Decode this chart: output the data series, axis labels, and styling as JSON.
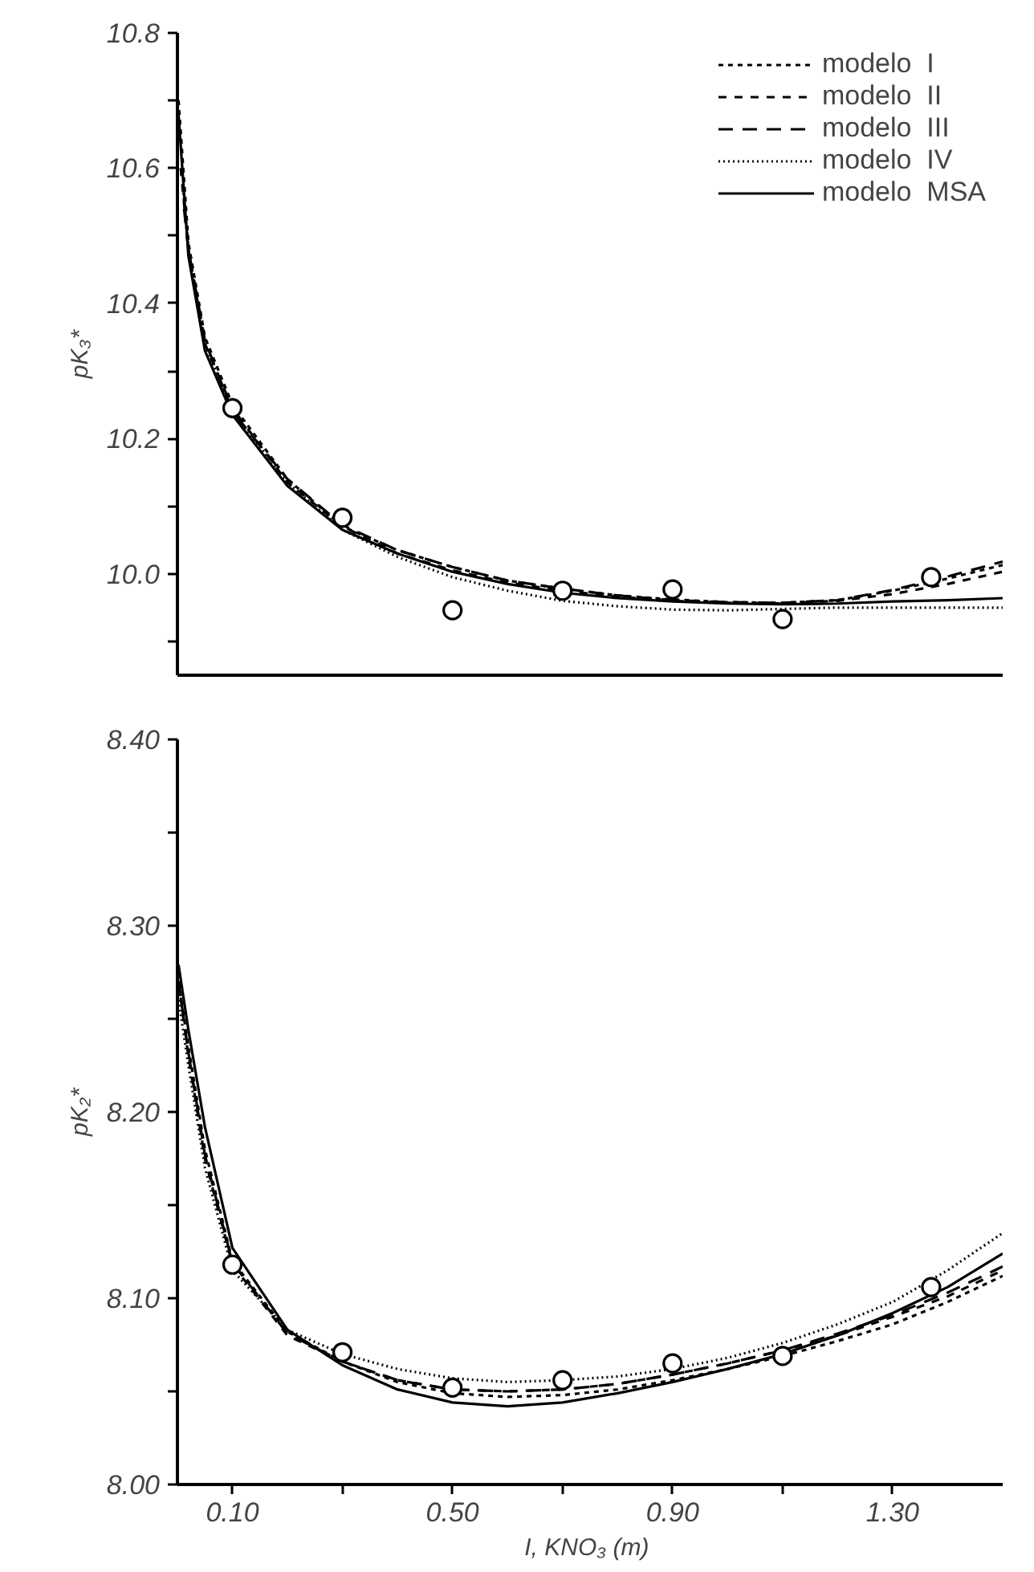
{
  "chart_data": [
    {
      "type": "line",
      "ylabel": "pK₃*",
      "xlim": [
        0,
        1.5
      ],
      "ylim": [
        9.85,
        10.8
      ],
      "yticks": [
        {
          "value": 9.9,
          "label": null
        },
        {
          "value": 10.0,
          "label": "10.0"
        },
        {
          "value": 10.1,
          "label": null
        },
        {
          "value": 10.2,
          "label": "10.2"
        },
        {
          "value": 10.3,
          "label": null
        },
        {
          "value": 10.4,
          "label": "10.4"
        },
        {
          "value": 10.5,
          "label": null
        },
        {
          "value": 10.6,
          "label": "10.6"
        },
        {
          "value": 10.7,
          "label": null
        },
        {
          "value": 10.8,
          "label": "10.8"
        }
      ],
      "tick_labels": "y",
      "grid": false,
      "legend": "top right",
      "x": [
        0.002,
        0.02,
        0.05,
        0.1,
        0.2,
        0.3,
        0.4,
        0.5,
        0.6,
        0.7,
        0.8,
        0.9,
        1.0,
        1.1,
        1.2,
        1.3,
        1.4,
        1.5
      ],
      "series": [
        {
          "name": "modelo  I",
          "color": "#000000",
          "line_style": "dashed",
          "values": [
            10.7,
            10.49,
            10.35,
            10.25,
            10.14,
            10.07,
            10.035,
            10.01,
            9.99,
            9.978,
            9.968,
            9.962,
            9.958,
            9.957,
            9.961,
            9.975,
            9.993,
            10.013
          ]
        },
        {
          "name": "modelo  II",
          "color": "#000000",
          "line_style": "dashed",
          "x": [
            0.006,
            0.02,
            0.05,
            0.1,
            0.2,
            0.3,
            0.4,
            0.5,
            0.6,
            0.7,
            0.8,
            0.9,
            1.0,
            1.1,
            1.2,
            1.3,
            1.4,
            1.5
          ],
          "values": [
            10.6,
            10.48,
            10.34,
            10.245,
            10.135,
            10.07,
            10.03,
            10.005,
            9.987,
            9.975,
            9.966,
            9.96,
            9.957,
            9.956,
            9.96,
            9.97,
            9.985,
            10.003
          ]
        },
        {
          "name": "modelo  III",
          "color": "#000000",
          "line_style": "dashed",
          "x": [
            0.012,
            0.02,
            0.05,
            0.1,
            0.2,
            0.3,
            0.4,
            0.5,
            0.6,
            0.7,
            0.8,
            0.9,
            1.0,
            1.1,
            1.2,
            1.3,
            1.4,
            1.5
          ],
          "values": [
            10.54,
            10.48,
            10.345,
            10.24,
            10.14,
            10.072,
            10.035,
            10.01,
            9.99,
            9.978,
            9.968,
            9.961,
            9.958,
            9.957,
            9.961,
            9.976,
            9.996,
            10.018
          ]
        },
        {
          "name": "modelo  IV",
          "color": "#000000",
          "line_style": "dotted",
          "x": [
            0.01,
            0.02,
            0.05,
            0.1,
            0.2,
            0.3,
            0.4,
            0.5,
            0.6,
            0.7,
            0.8,
            0.9,
            1.0,
            1.1,
            1.2,
            1.3,
            1.4,
            1.5
          ],
          "values": [
            10.57,
            10.48,
            10.34,
            10.24,
            10.135,
            10.065,
            10.025,
            9.995,
            9.975,
            9.96,
            9.952,
            9.947,
            9.946,
            9.948,
            9.95,
            9.95,
            9.95,
            9.95
          ]
        },
        {
          "name": "modelo  MSA",
          "color": "#000000",
          "line_style": "solid",
          "values": [
            10.68,
            10.47,
            10.33,
            10.235,
            10.13,
            10.065,
            10.03,
            10.003,
            9.985,
            9.972,
            9.964,
            9.959,
            9.956,
            9.955,
            9.956,
            9.959,
            9.961,
            9.964
          ]
        },
        {
          "type": "scatter",
          "marker": "circle",
          "color": "#000000",
          "x": [
            0.1,
            0.3,
            0.5,
            0.7,
            0.9,
            1.1,
            1.37
          ],
          "values": [
            10.245,
            10.083,
            9.946,
            9.975,
            9.977,
            9.933,
            9.995
          ]
        }
      ]
    },
    {
      "type": "line",
      "ylabel": "pK₂*",
      "xlabel": "I, KNO₃  (m)",
      "xlim": [
        0,
        1.5
      ],
      "ylim": [
        8.0,
        8.4
      ],
      "xticks": [
        {
          "value": 0.1,
          "label": "0.10"
        },
        {
          "value": 0.3,
          "label": null
        },
        {
          "value": 0.5,
          "label": "0.50"
        },
        {
          "value": 0.7,
          "label": null
        },
        {
          "value": 0.9,
          "label": "0.90"
        },
        {
          "value": 1.1,
          "label": null
        },
        {
          "value": 1.3,
          "label": "1.30"
        }
      ],
      "yticks": [
        {
          "value": 8.0,
          "label": "8.00"
        },
        {
          "value": 8.05,
          "label": null
        },
        {
          "value": 8.1,
          "label": "8.10"
        },
        {
          "value": 8.15,
          "label": null
        },
        {
          "value": 8.2,
          "label": "8.20"
        },
        {
          "value": 8.25,
          "label": null
        },
        {
          "value": 8.3,
          "label": "8.30"
        },
        {
          "value": 8.35,
          "label": null
        },
        {
          "value": 8.4,
          "label": "8.40"
        }
      ],
      "grid": false,
      "x": [
        0.002,
        0.02,
        0.05,
        0.1,
        0.2,
        0.3,
        0.4,
        0.5,
        0.6,
        0.7,
        0.8,
        0.9,
        1.0,
        1.1,
        1.2,
        1.3,
        1.4,
        1.5
      ],
      "series": [
        {
          "color": "#000000",
          "line_style": "dashed",
          "values": [
            8.27,
            8.235,
            8.18,
            8.12,
            8.082,
            8.066,
            8.055,
            8.049,
            8.047,
            8.048,
            8.051,
            8.056,
            8.062,
            8.069,
            8.077,
            8.086,
            8.098,
            8.112
          ]
        },
        {
          "color": "#000000",
          "line_style": "dashed",
          "values": [
            8.27,
            8.23,
            8.175,
            8.118,
            8.08,
            8.066,
            8.056,
            8.051,
            8.05,
            8.051,
            8.054,
            8.059,
            8.065,
            8.072,
            8.08,
            8.09,
            8.101,
            8.115
          ]
        },
        {
          "color": "#000000",
          "line_style": "dashed",
          "values": [
            8.27,
            8.232,
            8.177,
            8.119,
            8.081,
            8.066,
            8.056,
            8.051,
            8.05,
            8.051,
            8.054,
            8.059,
            8.065,
            8.072,
            8.081,
            8.091,
            8.103,
            8.117
          ]
        },
        {
          "color": "#000000",
          "line_style": "dotted",
          "values": [
            8.26,
            8.225,
            8.17,
            8.115,
            8.083,
            8.07,
            8.062,
            8.057,
            8.055,
            8.056,
            8.058,
            8.062,
            8.068,
            8.076,
            8.086,
            8.098,
            8.115,
            8.135
          ]
        },
        {
          "color": "#000000",
          "line_style": "solid",
          "values": [
            8.279,
            8.244,
            8.192,
            8.127,
            8.083,
            8.064,
            8.051,
            8.044,
            8.042,
            8.044,
            8.049,
            8.055,
            8.062,
            8.07,
            8.08,
            8.092,
            8.106,
            8.124
          ]
        },
        {
          "type": "scatter",
          "marker": "circle",
          "color": "#000000",
          "x": [
            0.1,
            0.3,
            0.5,
            0.7,
            0.9,
            1.1,
            1.37
          ],
          "values": [
            8.118,
            8.071,
            8.052,
            8.056,
            8.065,
            8.069,
            8.106
          ]
        }
      ]
    }
  ]
}
